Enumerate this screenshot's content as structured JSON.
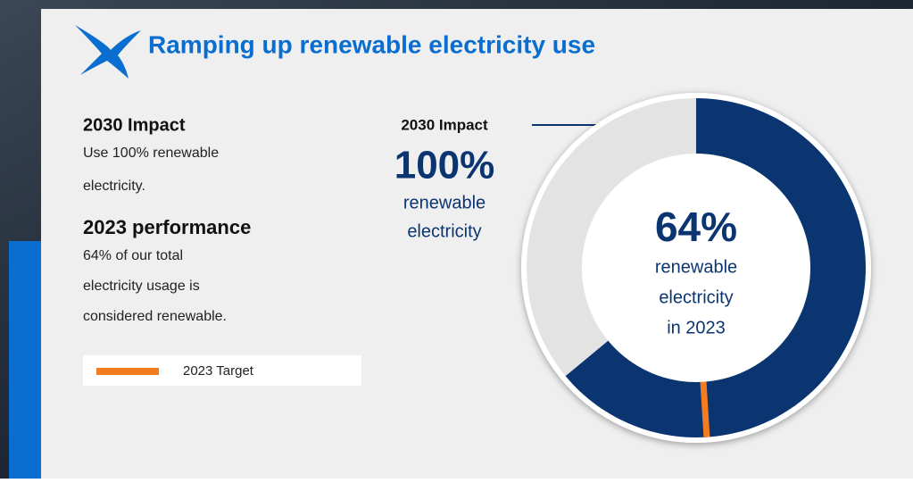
{
  "header": {
    "title": "Ramping up renewable electricity use"
  },
  "impact": {
    "heading": "2030 Impact",
    "lines": [
      "Use 100% renewable",
      "electricity."
    ]
  },
  "performance": {
    "heading": "2023 performance",
    "lines": [
      "64% of our total",
      "electricity usage is",
      "considered renewable."
    ]
  },
  "chart_data": {
    "type": "donut",
    "categories": [
      null,
      null
    ],
    "values": [
      64,
      36
    ],
    "value_labels": [
      "64%",
      null
    ],
    "colors": [
      "#0b3571",
      "#e3e3e3"
    ],
    "center_text": [
      "renewable",
      "electricity",
      "in 2023"
    ],
    "target": {
      "name": "2023 Target",
      "value": 49,
      "color": "#f47b20"
    },
    "callout": {
      "title": "2030 Impact",
      "value": 100,
      "value_label": "100%",
      "text": [
        "renewable",
        "electricity"
      ]
    }
  }
}
